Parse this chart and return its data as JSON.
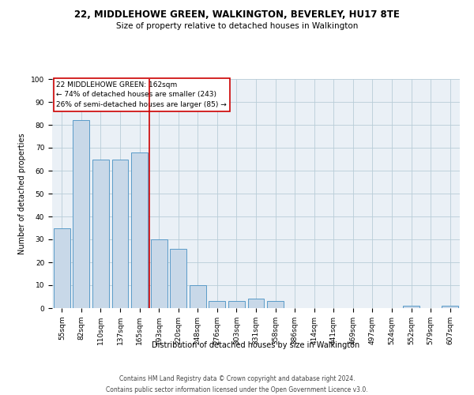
{
  "title": "22, MIDDLEHOWE GREEN, WALKINGTON, BEVERLEY, HU17 8TE",
  "subtitle": "Size of property relative to detached houses in Walkington",
  "xlabel": "Distribution of detached houses by size in Walkington",
  "ylabel": "Number of detached properties",
  "categories": [
    "55sqm",
    "82sqm",
    "110sqm",
    "137sqm",
    "165sqm",
    "193sqm",
    "220sqm",
    "248sqm",
    "276sqm",
    "303sqm",
    "331sqm",
    "358sqm",
    "386sqm",
    "414sqm",
    "441sqm",
    "469sqm",
    "497sqm",
    "524sqm",
    "552sqm",
    "579sqm",
    "607sqm"
  ],
  "values": [
    35,
    82,
    65,
    65,
    68,
    30,
    26,
    10,
    3,
    3,
    4,
    3,
    0,
    0,
    0,
    0,
    0,
    0,
    1,
    0,
    1
  ],
  "bar_color": "#c8d8e8",
  "bar_edge_color": "#5a9bc8",
  "annotation_line1": "22 MIDDLEHOWE GREEN: 162sqm",
  "annotation_line2": "← 74% of detached houses are smaller (243)",
  "annotation_line3": "26% of semi-detached houses are larger (85) →",
  "annotation_box_color": "#cc0000",
  "vline_x": 4.5,
  "ylim": [
    0,
    100
  ],
  "footer1": "Contains HM Land Registry data © Crown copyright and database right 2024.",
  "footer2": "Contains public sector information licensed under the Open Government Licence v3.0.",
  "title_fontsize": 8.5,
  "subtitle_fontsize": 7.5,
  "axis_label_fontsize": 7.0,
  "tick_fontsize": 6.5,
  "annotation_fontsize": 6.5,
  "footer_fontsize": 5.5
}
